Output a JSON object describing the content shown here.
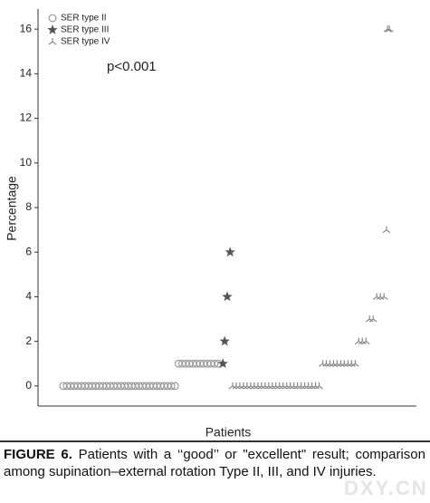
{
  "chart_data": {
    "type": "scatter",
    "annotation": "p<0.001",
    "x_label": "Patients",
    "y_label": "Percentage",
    "caption_label": "FIGURE 6.",
    "caption": "Patients with a ‘‘good’’ or \"excellent\" result; comparison among supination–external rotation Type II, III, and IV injuries.",
    "watermark": "DXY.CN",
    "xlim": [
      0,
      105
    ],
    "ylim": [
      -0.9,
      16.9
    ],
    "yticks": [
      0,
      2,
      4,
      6,
      8,
      10,
      12,
      14,
      16
    ],
    "legend": "top-left",
    "series": [
      {
        "name": "SER type II",
        "marker": "circle",
        "color": "#999999",
        "x": [
          7,
          8,
          9,
          10,
          11,
          12,
          13,
          14,
          15,
          16,
          17,
          18,
          19,
          20,
          21,
          22,
          23,
          24,
          25,
          26,
          27,
          28,
          29,
          30,
          31,
          32,
          33,
          34,
          35,
          36,
          37,
          38,
          39,
          40,
          41,
          42,
          43,
          44,
          45,
          46,
          47,
          48,
          49,
          50
        ],
        "values": [
          0,
          0,
          0,
          0,
          0,
          0,
          0,
          0,
          0,
          0,
          0,
          0,
          0,
          0,
          0,
          0,
          0,
          0,
          0,
          0,
          0,
          0,
          0,
          0,
          0,
          0,
          0,
          0,
          0,
          0,
          0,
          0,
          1,
          1,
          1,
          1,
          1,
          1,
          1,
          1,
          1,
          1,
          1,
          1
        ]
      },
      {
        "name": "SER type III",
        "marker": "star",
        "color": "#555555",
        "x": [
          51.3,
          51.8,
          52.5,
          53.3
        ],
        "values": [
          1,
          2,
          4,
          6
        ]
      },
      {
        "name": "SER type IV",
        "marker": "tri",
        "color": "#888888",
        "x": [
          54,
          55,
          56,
          57,
          58,
          59,
          60,
          61,
          62,
          63,
          64,
          65,
          66,
          67,
          68,
          69,
          70,
          71,
          72,
          73,
          74,
          75,
          76,
          77,
          78,
          79,
          80,
          81,
          82,
          83,
          84,
          85,
          86,
          87,
          88,
          89,
          90,
          91,
          92,
          93,
          94,
          95,
          96,
          96.7,
          97,
          97.5
        ],
        "values": [
          0,
          0,
          0,
          0,
          0,
          0,
          0,
          0,
          0,
          0,
          0,
          0,
          0,
          0,
          0,
          0,
          0,
          0,
          0,
          0,
          0,
          0,
          0,
          0,
          0,
          1,
          1,
          1,
          1,
          1,
          1,
          1,
          1,
          1,
          1,
          2,
          2,
          2,
          3,
          3,
          4,
          4,
          4,
          7,
          16,
          16
        ]
      }
    ]
  }
}
